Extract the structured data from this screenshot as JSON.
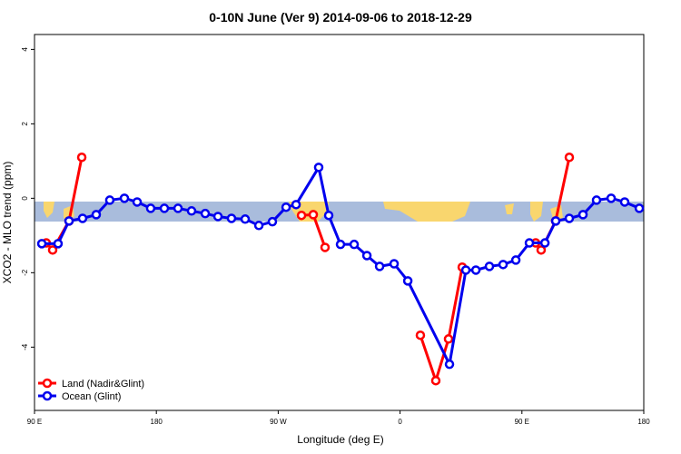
{
  "chart_data": {
    "type": "line",
    "title": "0-10N June (Ver 9)   2014-09-06 to 2018-12-29",
    "x_label": "Longitude (deg E)",
    "y_label": "XCO2 - MLO trend (ppm)",
    "xlim": [
      90,
      540
    ],
    "xticks": [
      {
        "value": 90,
        "label": "90 E"
      },
      {
        "value": 180,
        "label": "180"
      },
      {
        "value": 270,
        "label": "90 W"
      },
      {
        "value": 360,
        "label": "0"
      },
      {
        "value": 450,
        "label": "90 E"
      },
      {
        "value": 540,
        "label": "180"
      }
    ],
    "ylim": [
      -5.7,
      4.4
    ],
    "yticks": [
      -4,
      -2,
      0,
      2,
      4
    ],
    "legend": "lower left",
    "series": [
      {
        "name": "Land (Nadir&Glint)",
        "color": "#ff0000",
        "x": [
          98.7,
          103.4,
          115.5,
          124.9,
          null,
          287.2,
          295.9,
          304.6,
          null,
          375.0,
          386.4,
          395.8,
          405.9,
          null,
          460.2,
          464.2,
          474.9,
          485.0
        ],
        "values": [
          -1.2,
          -1.39,
          -0.61,
          1.1,
          null,
          -0.46,
          -0.44,
          -1.32,
          null,
          -3.68,
          -4.9,
          -3.78,
          -1.85,
          null,
          -1.2,
          -1.39,
          -0.61,
          1.1
        ]
      },
      {
        "name": "Ocean (Glint)",
        "color": "#0000ee",
        "x": [
          95.4,
          107.4,
          115.5,
          125.5,
          135.6,
          145.6,
          156.4,
          165.8,
          175.8,
          185.9,
          196.0,
          206.0,
          216.1,
          225.5,
          235.5,
          245.6,
          255.7,
          265.7,
          275.8,
          283.2,
          299.9,
          307.3,
          316.0,
          326.1,
          335.5,
          344.9,
          355.6,
          365.7,
          396.5,
          408.6,
          416.0,
          426.0,
          436.1,
          445.5,
          455.5,
          467.0,
          475.0,
          485.0,
          495.1,
          505.1,
          515.9,
          525.9,
          536.7
        ],
        "values": [
          -1.22,
          -1.22,
          -0.61,
          -0.54,
          -0.44,
          -0.05,
          0,
          -0.1,
          -0.27,
          -0.27,
          -0.27,
          -0.34,
          -0.41,
          -0.49,
          -0.54,
          -0.56,
          -0.73,
          -0.63,
          -0.24,
          -0.17,
          0.83,
          -0.46,
          -1.24,
          -1.24,
          -1.54,
          -1.83,
          -1.76,
          -2.22,
          -4.46,
          -1.93,
          -1.93,
          -1.83,
          -1.78,
          -1.66,
          -1.2,
          -1.2,
          -0.61,
          -0.54,
          -0.44,
          -0.05,
          0,
          -0.1,
          -0.27
        ]
      }
    ]
  }
}
